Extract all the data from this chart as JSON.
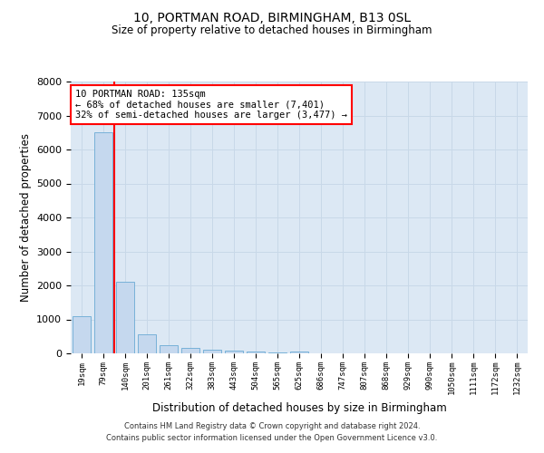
{
  "title1": "10, PORTMAN ROAD, BIRMINGHAM, B13 0SL",
  "title2": "Size of property relative to detached houses in Birmingham",
  "xlabel": "Distribution of detached houses by size in Birmingham",
  "ylabel": "Number of detached properties",
  "bin_labels": [
    "19sqm",
    "79sqm",
    "140sqm",
    "201sqm",
    "261sqm",
    "322sqm",
    "383sqm",
    "443sqm",
    "504sqm",
    "565sqm",
    "625sqm",
    "686sqm",
    "747sqm",
    "807sqm",
    "868sqm",
    "929sqm",
    "990sqm",
    "1050sqm",
    "1111sqm",
    "1172sqm",
    "1232sqm"
  ],
  "bar_values": [
    1100,
    6500,
    2100,
    550,
    250,
    150,
    100,
    75,
    50,
    25,
    50,
    5,
    0,
    0,
    0,
    0,
    0,
    0,
    0,
    0,
    0
  ],
  "bar_color": "#c5d8ee",
  "bar_edge_color": "#6aaad4",
  "vline_x": 1.5,
  "vline_color": "red",
  "annotation_text": "10 PORTMAN ROAD: 135sqm\n← 68% of detached houses are smaller (7,401)\n32% of semi-detached houses are larger (3,477) →",
  "annotation_box_color": "white",
  "annotation_box_edge_color": "red",
  "ylim": [
    0,
    8000
  ],
  "yticks": [
    0,
    1000,
    2000,
    3000,
    4000,
    5000,
    6000,
    7000,
    8000
  ],
  "grid_color": "#c8d8e8",
  "background_color": "#dce8f4",
  "footer1": "Contains HM Land Registry data © Crown copyright and database right 2024.",
  "footer2": "Contains public sector information licensed under the Open Government Licence v3.0."
}
